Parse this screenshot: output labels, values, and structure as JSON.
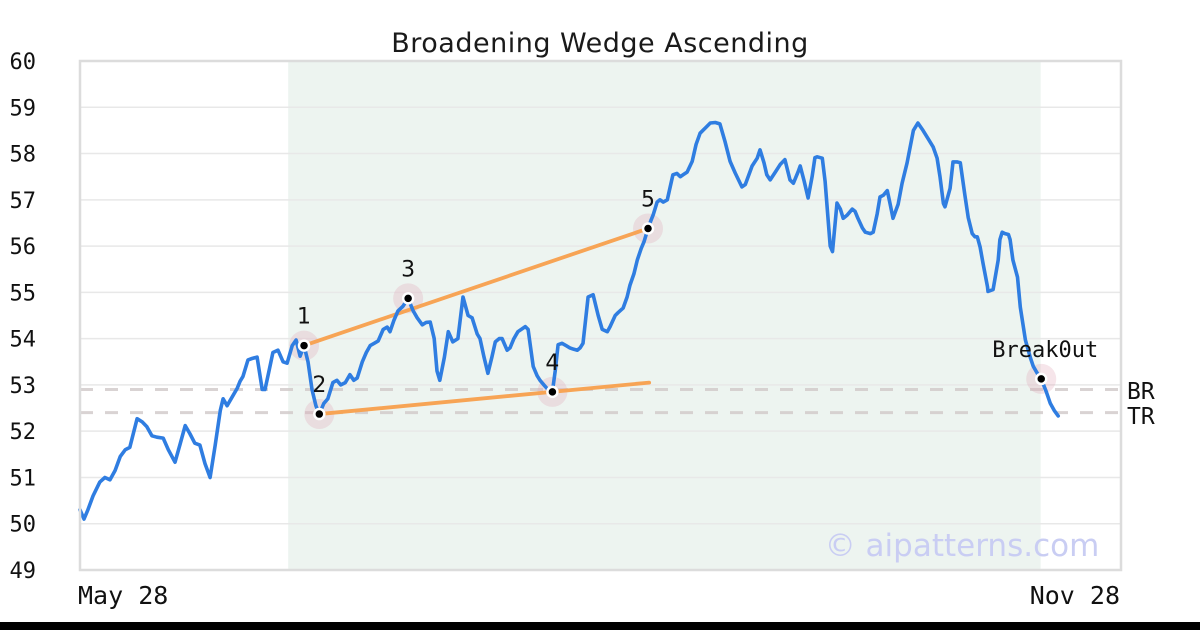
{
  "chart": {
    "title": "Broadening Wedge Ascending",
    "watermark": "© aipatterns.com",
    "x_start_label": "May 28",
    "x_end_label": "Nov 28",
    "br_label": "BR",
    "tr_label": "TR"
  },
  "colors": {
    "line_blue": "#2f7de1",
    "trendline_orange": "#f7a455",
    "region_fill": "#edf4f0",
    "grid": "#e8e8e8",
    "border": "#dcdcdc",
    "dashed_level": "#cfc8c8",
    "marker_halo": "rgba(222,160,180,0.28)",
    "marker_dot": "#000000",
    "text": "#111111",
    "watermark": "#c9cdf3"
  },
  "chart_data": {
    "type": "line",
    "title": "Broadening Wedge Ascending",
    "xlabel": "",
    "ylabel": "",
    "x_axis": {
      "start_label": "May 28",
      "end_label": "Nov 28",
      "range_days": 184
    },
    "ylim": [
      49,
      60
    ],
    "yticks": [
      49,
      50,
      51,
      52,
      53,
      54,
      55,
      56,
      57,
      58,
      59,
      60
    ],
    "grid": "horizontal",
    "legend": "none",
    "pattern_region_days": [
      36.8,
      169.8
    ],
    "levels": [
      {
        "name": "BR",
        "value": 52.9
      },
      {
        "name": "TR",
        "value": 52.4
      }
    ],
    "trendlines": [
      {
        "name": "upper",
        "points": [
          [
            39.6,
            53.85
          ],
          [
            100.4,
            56.38
          ]
        ]
      },
      {
        "name": "lower",
        "points": [
          [
            42.3,
            52.37
          ],
          [
            100.6,
            53.05
          ]
        ]
      }
    ],
    "markers": [
      {
        "label": "1",
        "day": 39.6,
        "price": 53.85
      },
      {
        "label": "2",
        "day": 42.3,
        "price": 52.37
      },
      {
        "label": "3",
        "day": 58.0,
        "price": 54.87
      },
      {
        "label": "4",
        "day": 83.5,
        "price": 52.85
      },
      {
        "label": "5",
        "day": 100.4,
        "price": 56.38
      },
      {
        "label": "Break0ut",
        "day": 169.9,
        "price": 53.13
      }
    ],
    "series": [
      {
        "name": "price",
        "points": [
          [
            0,
            50.3
          ],
          [
            0.7,
            50.1
          ],
          [
            1.4,
            50.3
          ],
          [
            2.3,
            50.6
          ],
          [
            3.5,
            50.9
          ],
          [
            4.4,
            51.0
          ],
          [
            5.3,
            50.95
          ],
          [
            6.2,
            51.15
          ],
          [
            7.1,
            51.45
          ],
          [
            8,
            51.6
          ],
          [
            8.8,
            51.65
          ],
          [
            10.1,
            52.27
          ],
          [
            11,
            52.2
          ],
          [
            11.8,
            52.1
          ],
          [
            12.7,
            51.9
          ],
          [
            13.6,
            51.87
          ],
          [
            14.7,
            51.85
          ],
          [
            15.6,
            51.6
          ],
          [
            16.8,
            51.33
          ],
          [
            17.7,
            51.72
          ],
          [
            18.6,
            52.12
          ],
          [
            19.4,
            51.95
          ],
          [
            20.3,
            51.74
          ],
          [
            21.2,
            51.7
          ],
          [
            22.1,
            51.3
          ],
          [
            23,
            51.0
          ],
          [
            23.9,
            51.7
          ],
          [
            24.8,
            52.45
          ],
          [
            25.3,
            52.7
          ],
          [
            26,
            52.55
          ],
          [
            26.7,
            52.7
          ],
          [
            27.8,
            52.93
          ],
          [
            28.3,
            53.08
          ],
          [
            28.8,
            53.18
          ],
          [
            29.7,
            53.54
          ],
          [
            30.4,
            53.57
          ],
          [
            31.3,
            53.6
          ],
          [
            32.2,
            52.9
          ],
          [
            32.7,
            52.9
          ],
          [
            33.4,
            53.3
          ],
          [
            34.1,
            53.7
          ],
          [
            35,
            53.75
          ],
          [
            35.9,
            53.5
          ],
          [
            36.6,
            53.47
          ],
          [
            37.5,
            53.85
          ],
          [
            38.2,
            53.97
          ],
          [
            38.9,
            53.62
          ],
          [
            39.6,
            53.85
          ],
          [
            40.3,
            53.5
          ],
          [
            41,
            52.9
          ],
          [
            41.7,
            52.55
          ],
          [
            42.3,
            52.37
          ],
          [
            43.1,
            52.6
          ],
          [
            43.8,
            52.7
          ],
          [
            44.7,
            53.05
          ],
          [
            45.4,
            53.1
          ],
          [
            46.1,
            53.0
          ],
          [
            46.9,
            53.05
          ],
          [
            47.7,
            53.22
          ],
          [
            48.4,
            53.1
          ],
          [
            49,
            53.15
          ],
          [
            49.9,
            53.5
          ],
          [
            50.6,
            53.7
          ],
          [
            51.3,
            53.85
          ],
          [
            52,
            53.9
          ],
          [
            52.7,
            53.95
          ],
          [
            53.6,
            54.2
          ],
          [
            54.3,
            54.25
          ],
          [
            54.8,
            54.15
          ],
          [
            55.5,
            54.4
          ],
          [
            56.2,
            54.6
          ],
          [
            57.1,
            54.7
          ],
          [
            58,
            54.87
          ],
          [
            58.9,
            54.6
          ],
          [
            59.6,
            54.45
          ],
          [
            60.5,
            54.3
          ],
          [
            61.2,
            54.35
          ],
          [
            61.9,
            54.36
          ],
          [
            62.6,
            54.0
          ],
          [
            63.1,
            53.3
          ],
          [
            63.6,
            53.1
          ],
          [
            64.4,
            53.6
          ],
          [
            65.1,
            54.15
          ],
          [
            65.9,
            53.93
          ],
          [
            66.8,
            54.0
          ],
          [
            67.7,
            54.9
          ],
          [
            68.6,
            54.5
          ],
          [
            69.3,
            54.45
          ],
          [
            70.2,
            54.1
          ],
          [
            70.7,
            54.0
          ],
          [
            71.4,
            53.6
          ],
          [
            72.1,
            53.25
          ],
          [
            72.8,
            53.6
          ],
          [
            73.4,
            53.93
          ],
          [
            74.1,
            54.0
          ],
          [
            74.6,
            54.0
          ],
          [
            75.5,
            53.75
          ],
          [
            76,
            53.8
          ],
          [
            76.7,
            54.0
          ],
          [
            77.4,
            54.15
          ],
          [
            78.7,
            54.26
          ],
          [
            79.2,
            54.2
          ],
          [
            80.1,
            53.4
          ],
          [
            80.8,
            53.2
          ],
          [
            81.3,
            53.1
          ],
          [
            82,
            53.0
          ],
          [
            82.7,
            52.9
          ],
          [
            83.5,
            52.85
          ],
          [
            84,
            53.3
          ],
          [
            84.5,
            53.87
          ],
          [
            85.2,
            53.9
          ],
          [
            85.9,
            53.85
          ],
          [
            86.6,
            53.8
          ],
          [
            87.3,
            53.77
          ],
          [
            87.9,
            53.75
          ],
          [
            88.4,
            53.8
          ],
          [
            88.9,
            53.9
          ],
          [
            89.8,
            54.9
          ],
          [
            90.7,
            54.95
          ],
          [
            91.6,
            54.5
          ],
          [
            92.3,
            54.2
          ],
          [
            93.2,
            54.15
          ],
          [
            93.7,
            54.26
          ],
          [
            94.6,
            54.5
          ],
          [
            95.1,
            54.56
          ],
          [
            96,
            54.66
          ],
          [
            96.7,
            54.9
          ],
          [
            97.2,
            55.15
          ],
          [
            97.9,
            55.4
          ],
          [
            98.5,
            55.7
          ],
          [
            99.2,
            55.95
          ],
          [
            99.7,
            56.1
          ],
          [
            100.4,
            56.38
          ],
          [
            100.9,
            56.55
          ],
          [
            101.3,
            56.67
          ],
          [
            102,
            56.95
          ],
          [
            102.5,
            57.0
          ],
          [
            103.1,
            56.95
          ],
          [
            103.8,
            57.0
          ],
          [
            104.8,
            57.54
          ],
          [
            105.5,
            57.57
          ],
          [
            106.1,
            57.5
          ],
          [
            106.6,
            57.54
          ],
          [
            107.3,
            57.6
          ],
          [
            108.2,
            57.83
          ],
          [
            108.9,
            58.2
          ],
          [
            109.6,
            58.44
          ],
          [
            110.5,
            58.55
          ],
          [
            111.4,
            58.66
          ],
          [
            112.3,
            58.67
          ],
          [
            113.1,
            58.64
          ],
          [
            114,
            58.26
          ],
          [
            114.9,
            57.83
          ],
          [
            115.8,
            57.58
          ],
          [
            117,
            57.28
          ],
          [
            117.6,
            57.33
          ],
          [
            118.8,
            57.73
          ],
          [
            119.7,
            57.9
          ],
          [
            120.2,
            58.08
          ],
          [
            120.9,
            57.8
          ],
          [
            121.4,
            57.54
          ],
          [
            122,
            57.43
          ],
          [
            122.9,
            57.6
          ],
          [
            123.8,
            57.77
          ],
          [
            124.6,
            57.87
          ],
          [
            125.5,
            57.43
          ],
          [
            126.1,
            57.36
          ],
          [
            126.9,
            57.6
          ],
          [
            127.3,
            57.73
          ],
          [
            128,
            57.4
          ],
          [
            128.7,
            57.04
          ],
          [
            129.4,
            57.5
          ],
          [
            129.9,
            57.91
          ],
          [
            130.3,
            57.93
          ],
          [
            131.2,
            57.9
          ],
          [
            131.7,
            57.4
          ],
          [
            132.6,
            56.0
          ],
          [
            133,
            55.88
          ],
          [
            133.8,
            56.93
          ],
          [
            134.4,
            56.8
          ],
          [
            134.9,
            56.6
          ],
          [
            135.6,
            56.67
          ],
          [
            136.5,
            56.8
          ],
          [
            137,
            56.75
          ],
          [
            137.5,
            56.6
          ],
          [
            138.3,
            56.39
          ],
          [
            138.8,
            56.3
          ],
          [
            139.7,
            56.27
          ],
          [
            140.2,
            56.3
          ],
          [
            140.9,
            56.7
          ],
          [
            141.4,
            57.06
          ],
          [
            142,
            57.1
          ],
          [
            142.7,
            57.2
          ],
          [
            143.2,
            56.9
          ],
          [
            143.7,
            56.6
          ],
          [
            144.6,
            56.9
          ],
          [
            145.3,
            57.36
          ],
          [
            146.2,
            57.8
          ],
          [
            147.3,
            58.5
          ],
          [
            148.1,
            58.66
          ],
          [
            149,
            58.5
          ],
          [
            149.9,
            58.32
          ],
          [
            150.8,
            58.14
          ],
          [
            151.5,
            57.9
          ],
          [
            152,
            57.5
          ],
          [
            152.6,
            56.92
          ],
          [
            152.9,
            56.85
          ],
          [
            153.8,
            57.25
          ],
          [
            154.3,
            57.82
          ],
          [
            155,
            57.82
          ],
          [
            155.6,
            57.8
          ],
          [
            156.4,
            57.1
          ],
          [
            157,
            56.62
          ],
          [
            157.7,
            56.27
          ],
          [
            158.2,
            56.2
          ],
          [
            158.6,
            56.2
          ],
          [
            159.1,
            55.98
          ],
          [
            159.6,
            55.63
          ],
          [
            160.4,
            55.12
          ],
          [
            160.5,
            55.02
          ],
          [
            161.4,
            55.06
          ],
          [
            162.3,
            55.7
          ],
          [
            162.6,
            56.14
          ],
          [
            163,
            56.3
          ],
          [
            163.5,
            56.27
          ],
          [
            164.1,
            56.25
          ],
          [
            164.4,
            56.14
          ],
          [
            164.9,
            55.7
          ],
          [
            165.7,
            55.33
          ],
          [
            166.2,
            54.68
          ],
          [
            167.1,
            53.97
          ],
          [
            168,
            53.58
          ],
          [
            168.5,
            53.4
          ],
          [
            169.2,
            53.25
          ],
          [
            169.9,
            53.13
          ],
          [
            170.8,
            52.85
          ],
          [
            171.5,
            52.6
          ],
          [
            172.2,
            52.45
          ],
          [
            172.9,
            52.33
          ]
        ]
      }
    ]
  }
}
